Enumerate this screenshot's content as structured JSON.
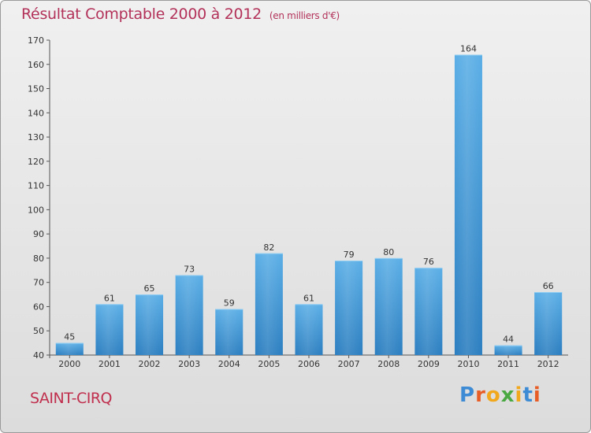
{
  "header": {
    "title": "Résultat Comptable 2000 à 2012",
    "subtitle": "(en milliers d'€)"
  },
  "footer": {
    "town": "SAINT-CIRQ",
    "brand": [
      "P",
      "r",
      "o",
      "x",
      "i",
      "t",
      "i"
    ]
  },
  "colors": {
    "title": "#b3325a",
    "bar_top": "#5aaee6",
    "bar_bottom": "#2b7ec0",
    "axis": "#555555"
  },
  "chart_data": {
    "type": "bar",
    "title": "Résultat Comptable 2000 à 2012",
    "subtitle": "(en milliers d'€)",
    "categories": [
      "2000",
      "2001",
      "2002",
      "2003",
      "2004",
      "2005",
      "2006",
      "2007",
      "2008",
      "2009",
      "2010",
      "2011",
      "2012"
    ],
    "values": [
      45,
      61,
      65,
      73,
      59,
      82,
      61,
      79,
      80,
      76,
      164,
      44,
      66
    ],
    "ylim": [
      40,
      170
    ],
    "yticks": [
      40,
      50,
      60,
      70,
      80,
      90,
      100,
      110,
      120,
      130,
      140,
      150,
      160,
      170
    ],
    "grid": false,
    "data_labels": true
  }
}
